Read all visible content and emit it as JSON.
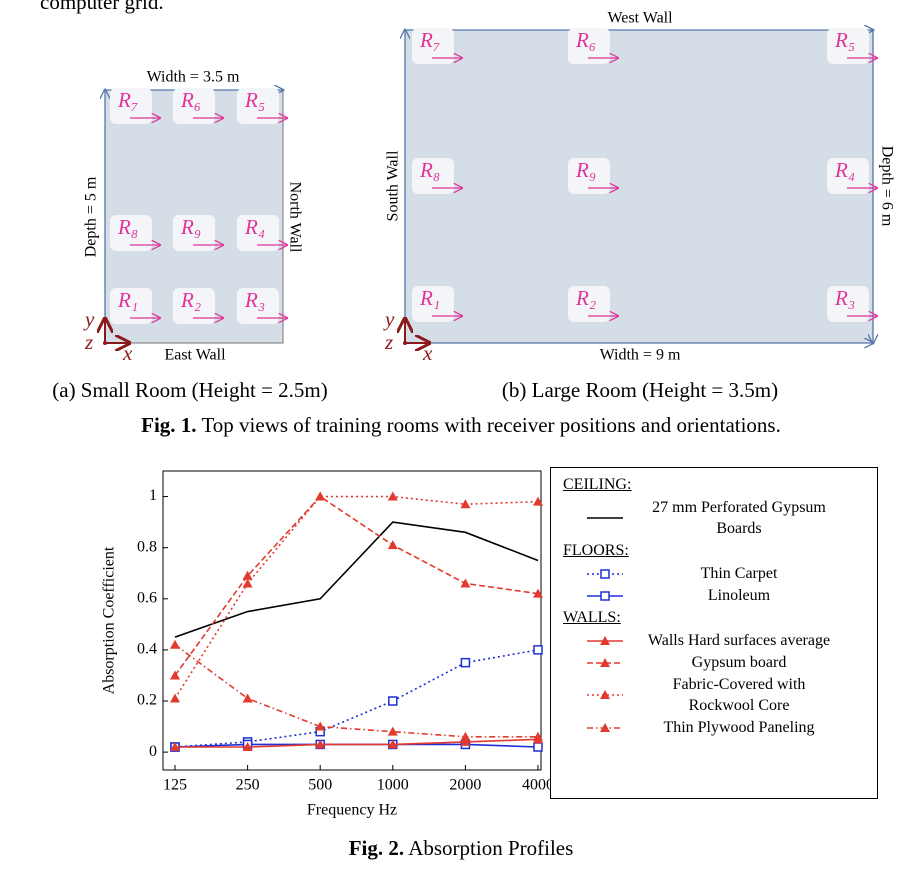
{
  "header_text": "computer grid.",
  "figure1": {
    "rooms": [
      {
        "top_label": "Width = 3.5 m",
        "left_label": "Depth = 5 m",
        "right_label": "North Wall",
        "bottom_label": "East Wall",
        "receivers": [
          "R₇",
          "R₆",
          "R₅",
          "R₈",
          "R₉",
          "R₄",
          "R₁",
          "R₂",
          "R₃"
        ],
        "axes": [
          "x",
          "y",
          "z"
        ],
        "caption": "(a) Small Room (Height = 2.5m)"
      },
      {
        "top_label": "West Wall",
        "left_label": "South Wall",
        "right_label": "Depth = 6 m",
        "bottom_label": "Width = 9 m",
        "receivers": [
          "R₇",
          "R₆",
          "R₅",
          "R₈",
          "R₉",
          "R₄",
          "R₁",
          "R₂",
          "R₃"
        ],
        "axes": [
          "x",
          "y",
          "z"
        ],
        "caption": "(b) Large Room (Height = 3.5m)"
      }
    ],
    "caption_label": "Fig. 1.",
    "caption_text": "Top views of training rooms with receiver positions and orientations."
  },
  "chart_data": {
    "type": "line",
    "x_label": "Frequency Hz",
    "y_label": "Absorption Coefficient",
    "categories": [
      "125",
      "250",
      "500",
      "1000",
      "2000",
      "4000"
    ],
    "ylim": [
      -0.07,
      1.1
    ],
    "yticks": [
      0,
      0.2,
      0.4,
      0.6,
      0.8,
      1
    ],
    "groups": [
      {
        "title": "CEILING:",
        "series": [
          {
            "name": "27 mm Perforated Gypsum Boards",
            "color": "#000000",
            "style": "solid",
            "marker": "none",
            "values": [
              0.45,
              0.55,
              0.6,
              0.9,
              0.86,
              0.75
            ]
          }
        ]
      },
      {
        "title": "FLOORS:",
        "series": [
          {
            "name": "Thin Carpet",
            "color": "#1f2fd6",
            "style": "dotted",
            "marker": "square",
            "values": [
              0.02,
              0.04,
              0.08,
              0.2,
              0.35,
              0.4
            ]
          },
          {
            "name": "Linoleum",
            "color": "#1f2fd6",
            "style": "solid",
            "marker": "square",
            "values": [
              0.02,
              0.03,
              0.03,
              0.03,
              0.03,
              0.02
            ]
          }
        ]
      },
      {
        "title": "WALLS:",
        "series": [
          {
            "name": "Walls Hard surfaces average",
            "color": "#e23a2e",
            "style": "solid",
            "marker": "triangle",
            "values": [
              0.02,
              0.02,
              0.03,
              0.03,
              0.04,
              0.05
            ]
          },
          {
            "name": "Gypsum board",
            "color": "#e23a2e",
            "style": "dashed",
            "marker": "triangle",
            "values": [
              0.3,
              0.69,
              1.0,
              0.81,
              0.66,
              0.62
            ]
          },
          {
            "name": "Fabric-Covered with Rockwool Core",
            "color": "#e23a2e",
            "style": "dotted",
            "marker": "triangle",
            "values": [
              0.21,
              0.66,
              1.0,
              1.0,
              0.97,
              0.98
            ]
          },
          {
            "name": "Thin Plywood Paneling",
            "color": "#e23a2e",
            "style": "dashdot",
            "marker": "triangle",
            "values": [
              0.42,
              0.21,
              0.1,
              0.08,
              0.06,
              0.06
            ]
          }
        ]
      }
    ]
  },
  "figure2": {
    "caption_label": "Fig. 2.",
    "caption_text": "Absorption Profiles"
  }
}
